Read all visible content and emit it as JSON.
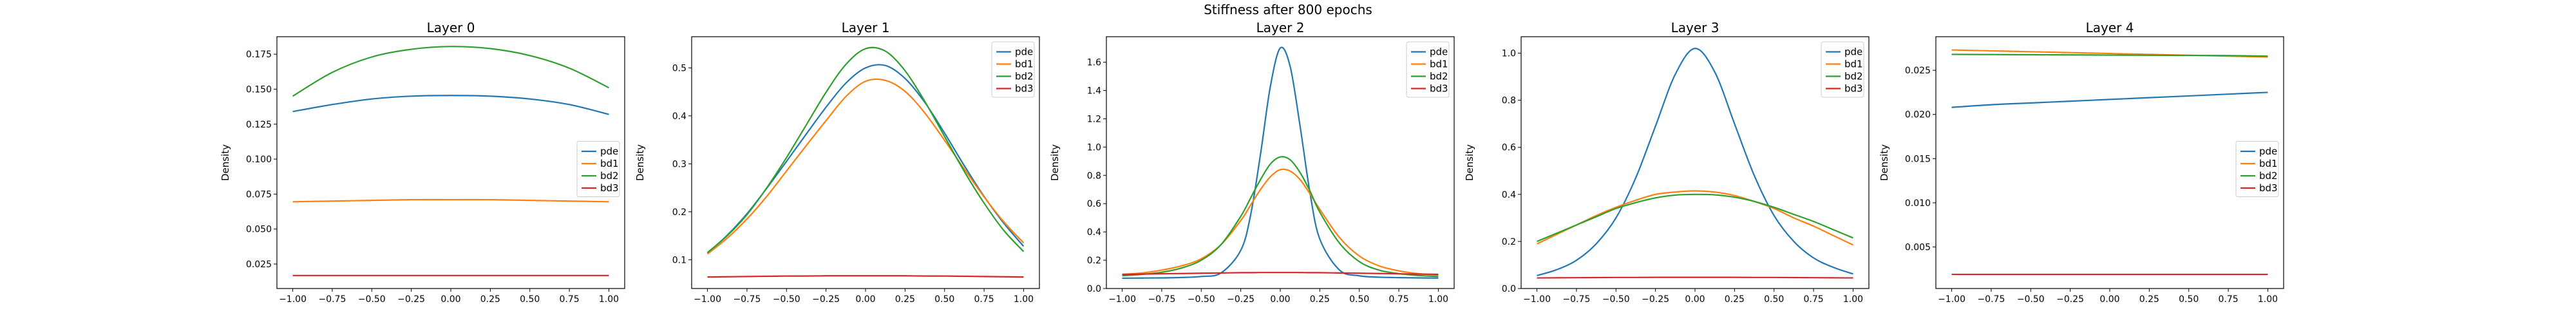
{
  "suptitle": "Stiffness after 800 epochs",
  "chart_data": [
    {
      "type": "line",
      "title": "Layer 0",
      "xlabel": "",
      "ylabel": "Density",
      "xlim": [
        -1.1,
        1.1
      ],
      "ylim": [
        0.0075,
        0.1875
      ],
      "xticks": [
        -1.0,
        -0.75,
        -0.5,
        -0.25,
        0.0,
        0.25,
        0.5,
        0.75,
        1.0
      ],
      "xtick_labels": [
        "−1.00",
        "−0.75",
        "−0.50",
        "−0.25",
        "0.00",
        "0.25",
        "0.50",
        "0.75",
        "1.00"
      ],
      "yticks": [
        0.025,
        0.05,
        0.075,
        0.1,
        0.125,
        0.15,
        0.175
      ],
      "ytick_labels": [
        "0.025",
        "0.050",
        "0.075",
        "0.100",
        "0.125",
        "0.150",
        "0.175"
      ],
      "legend_position": "center-right",
      "grid": false,
      "x": [
        -1.0,
        -0.75,
        -0.5,
        -0.25,
        0.0,
        0.25,
        0.5,
        0.75,
        1.0
      ],
      "series": [
        {
          "name": "pde",
          "color": "#1f77b4",
          "values": [
            0.134,
            0.139,
            0.143,
            0.145,
            0.1455,
            0.145,
            0.143,
            0.139,
            0.132
          ]
        },
        {
          "name": "bd1",
          "color": "#ff7f0e",
          "values": [
            0.0695,
            0.07,
            0.0705,
            0.071,
            0.071,
            0.071,
            0.0705,
            0.07,
            0.0695
          ]
        },
        {
          "name": "bd2",
          "color": "#2ca02c",
          "values": [
            0.145,
            0.162,
            0.173,
            0.1785,
            0.1805,
            0.179,
            0.174,
            0.165,
            0.151
          ]
        },
        {
          "name": "bd3",
          "color": "#d62728",
          "values": [
            0.0168,
            0.0168,
            0.0168,
            0.0168,
            0.0168,
            0.0168,
            0.0168,
            0.0168,
            0.0168
          ]
        }
      ]
    },
    {
      "type": "line",
      "title": "Layer 1",
      "xlabel": "",
      "ylabel": "Density",
      "xlim": [
        -1.1,
        1.1
      ],
      "ylim": [
        0.04,
        0.565
      ],
      "xticks": [
        -1.0,
        -0.75,
        -0.5,
        -0.25,
        0.0,
        0.25,
        0.5,
        0.75,
        1.0
      ],
      "xtick_labels": [
        "−1.00",
        "−0.75",
        "−0.50",
        "−0.25",
        "0.00",
        "0.25",
        "0.50",
        "0.75",
        "1.00"
      ],
      "yticks": [
        0.1,
        0.2,
        0.3,
        0.4,
        0.5
      ],
      "ytick_labels": [
        "0.1",
        "0.2",
        "0.3",
        "0.4",
        "0.5"
      ],
      "legend_position": "top-right",
      "grid": false,
      "x": [
        -1.0,
        -0.875,
        -0.75,
        -0.625,
        -0.5,
        -0.375,
        -0.25,
        -0.125,
        0.0,
        0.125,
        0.25,
        0.375,
        0.5,
        0.625,
        0.75,
        0.875,
        1.0
      ],
      "series": [
        {
          "name": "pde",
          "color": "#1f77b4",
          "values": [
            0.114,
            0.151,
            0.196,
            0.249,
            0.305,
            0.362,
            0.418,
            0.468,
            0.5,
            0.505,
            0.478,
            0.428,
            0.364,
            0.296,
            0.232,
            0.176,
            0.128
          ]
        },
        {
          "name": "bd1",
          "color": "#ff7f0e",
          "values": [
            0.112,
            0.145,
            0.185,
            0.232,
            0.285,
            0.338,
            0.39,
            0.44,
            0.472,
            0.474,
            0.451,
            0.406,
            0.349,
            0.289,
            0.231,
            0.179,
            0.135
          ]
        },
        {
          "name": "bd2",
          "color": "#2ca02c",
          "values": [
            0.115,
            0.15,
            0.194,
            0.25,
            0.313,
            0.381,
            0.449,
            0.507,
            0.54,
            0.535,
            0.494,
            0.43,
            0.357,
            0.284,
            0.218,
            0.161,
            0.117
          ]
        },
        {
          "name": "bd3",
          "color": "#d62728",
          "values": [
            0.064,
            0.0645,
            0.065,
            0.0655,
            0.066,
            0.066,
            0.0665,
            0.0665,
            0.0665,
            0.0665,
            0.0665,
            0.066,
            0.066,
            0.0655,
            0.065,
            0.0645,
            0.064
          ]
        }
      ]
    },
    {
      "type": "line",
      "title": "Layer 2",
      "xlabel": "",
      "ylabel": "Density",
      "xlim": [
        -1.1,
        1.1
      ],
      "ylim": [
        0.0,
        1.78
      ],
      "xticks": [
        -1.0,
        -0.75,
        -0.5,
        -0.25,
        0.0,
        0.25,
        0.5,
        0.75,
        1.0
      ],
      "xtick_labels": [
        "−1.00",
        "−0.75",
        "−0.50",
        "−0.25",
        "0.00",
        "0.25",
        "0.50",
        "0.75",
        "1.00"
      ],
      "yticks": [
        0.0,
        0.2,
        0.4,
        0.6,
        0.8,
        1.0,
        1.2,
        1.4,
        1.6
      ],
      "ytick_labels": [
        "0.0",
        "0.2",
        "0.4",
        "0.6",
        "0.8",
        "1.0",
        "1.2",
        "1.4",
        "1.6"
      ],
      "legend_position": "top-right",
      "grid": false,
      "x": [
        -1.0,
        -0.875,
        -0.75,
        -0.625,
        -0.5,
        -0.375,
        -0.25,
        -0.1875,
        -0.125,
        -0.0625,
        0.0,
        0.0625,
        0.125,
        0.1875,
        0.25,
        0.375,
        0.5,
        0.625,
        0.75,
        0.875,
        1.0
      ],
      "series": [
        {
          "name": "pde",
          "color": "#1f77b4",
          "values": [
            0.073,
            0.074,
            0.075,
            0.078,
            0.085,
            0.11,
            0.27,
            0.52,
            0.95,
            1.43,
            1.7,
            1.57,
            1.15,
            0.68,
            0.35,
            0.13,
            0.09,
            0.08,
            0.077,
            0.075,
            0.074
          ]
        },
        {
          "name": "bd1",
          "color": "#ff7f0e",
          "values": [
            0.1,
            0.11,
            0.13,
            0.16,
            0.21,
            0.31,
            0.48,
            0.59,
            0.7,
            0.79,
            0.84,
            0.83,
            0.77,
            0.67,
            0.56,
            0.36,
            0.23,
            0.16,
            0.125,
            0.105,
            0.095
          ]
        },
        {
          "name": "bd2",
          "color": "#2ca02c",
          "values": [
            0.09,
            0.1,
            0.115,
            0.145,
            0.2,
            0.31,
            0.51,
            0.64,
            0.77,
            0.88,
            0.93,
            0.91,
            0.82,
            0.69,
            0.54,
            0.32,
            0.19,
            0.13,
            0.105,
            0.092,
            0.085
          ]
        },
        {
          "name": "bd3",
          "color": "#d62728",
          "values": [
            0.1,
            0.102,
            0.104,
            0.106,
            0.108,
            0.11,
            0.112,
            0.112,
            0.113,
            0.113,
            0.113,
            0.113,
            0.113,
            0.112,
            0.112,
            0.11,
            0.108,
            0.106,
            0.104,
            0.102,
            0.1
          ]
        }
      ]
    },
    {
      "type": "line",
      "title": "Layer 3",
      "xlabel": "",
      "ylabel": "Density",
      "xlim": [
        -1.1,
        1.1
      ],
      "ylim": [
        0.0,
        1.07
      ],
      "xticks": [
        -1.0,
        -0.75,
        -0.5,
        -0.25,
        0.0,
        0.25,
        0.5,
        0.75,
        1.0
      ],
      "xtick_labels": [
        "−1.00",
        "−0.75",
        "−0.50",
        "−0.25",
        "0.00",
        "0.25",
        "0.50",
        "0.75",
        "1.00"
      ],
      "yticks": [
        0.0,
        0.2,
        0.4,
        0.6,
        0.8,
        1.0
      ],
      "ytick_labels": [
        "0.0",
        "0.2",
        "0.4",
        "0.6",
        "0.8",
        "1.0"
      ],
      "legend_position": "top-right",
      "grid": false,
      "x": [
        -1.0,
        -0.875,
        -0.75,
        -0.625,
        -0.5,
        -0.375,
        -0.25,
        -0.125,
        0.0,
        0.125,
        0.25,
        0.375,
        0.5,
        0.625,
        0.75,
        0.875,
        1.0
      ],
      "series": [
        {
          "name": "pde",
          "color": "#1f77b4",
          "values": [
            0.055,
            0.08,
            0.12,
            0.19,
            0.3,
            0.47,
            0.69,
            0.91,
            1.02,
            0.92,
            0.7,
            0.48,
            0.31,
            0.2,
            0.13,
            0.09,
            0.062
          ]
        },
        {
          "name": "bd1",
          "color": "#ff7f0e",
          "values": [
            0.19,
            0.23,
            0.27,
            0.31,
            0.345,
            0.375,
            0.4,
            0.41,
            0.415,
            0.41,
            0.395,
            0.37,
            0.34,
            0.3,
            0.265,
            0.225,
            0.185
          ]
        },
        {
          "name": "bd2",
          "color": "#2ca02c",
          "values": [
            0.2,
            0.235,
            0.27,
            0.305,
            0.34,
            0.365,
            0.385,
            0.397,
            0.4,
            0.398,
            0.388,
            0.37,
            0.345,
            0.315,
            0.285,
            0.25,
            0.215
          ]
        },
        {
          "name": "bd3",
          "color": "#d62728",
          "values": [
            0.045,
            0.0455,
            0.046,
            0.0465,
            0.047,
            0.047,
            0.0475,
            0.0475,
            0.0475,
            0.0475,
            0.0475,
            0.047,
            0.047,
            0.0465,
            0.046,
            0.0455,
            0.045
          ]
        }
      ]
    },
    {
      "type": "line",
      "title": "Layer 4",
      "xlabel": "",
      "ylabel": "Density",
      "xlim": [
        -1.1,
        1.1
      ],
      "ylim": [
        0.0003,
        0.0288
      ],
      "xticks": [
        -1.0,
        -0.75,
        -0.5,
        -0.25,
        0.0,
        0.25,
        0.5,
        0.75,
        1.0
      ],
      "xtick_labels": [
        "−1.00",
        "−0.75",
        "−0.50",
        "−0.25",
        "0.00",
        "0.25",
        "0.50",
        "0.75",
        "1.00"
      ],
      "yticks": [
        0.005,
        0.01,
        0.015,
        0.02,
        0.025
      ],
      "ytick_labels": [
        "0.005",
        "0.010",
        "0.015",
        "0.020",
        "0.025"
      ],
      "legend_position": "center-right",
      "grid": false,
      "x": [
        -1.0,
        -0.75,
        -0.5,
        -0.25,
        0.0,
        0.25,
        0.5,
        0.75,
        1.0
      ],
      "series": [
        {
          "name": "pde",
          "color": "#1f77b4",
          "values": [
            0.0208,
            0.0211,
            0.0213,
            0.0215,
            0.0217,
            0.0219,
            0.0221,
            0.0223,
            0.0225
          ]
        },
        {
          "name": "bd1",
          "color": "#ff7f0e",
          "values": [
            0.0273,
            0.0272,
            0.0271,
            0.027,
            0.0269,
            0.0268,
            0.0267,
            0.0266,
            0.0265
          ]
        },
        {
          "name": "bd2",
          "color": "#2ca02c",
          "values": [
            0.0268,
            0.02678,
            0.02676,
            0.02674,
            0.02672,
            0.0267,
            0.02668,
            0.02666,
            0.0266
          ]
        },
        {
          "name": "bd3",
          "color": "#d62728",
          "values": [
            0.0019,
            0.0019,
            0.0019,
            0.0019,
            0.0019,
            0.0019,
            0.0019,
            0.0019,
            0.0019
          ]
        }
      ]
    }
  ]
}
